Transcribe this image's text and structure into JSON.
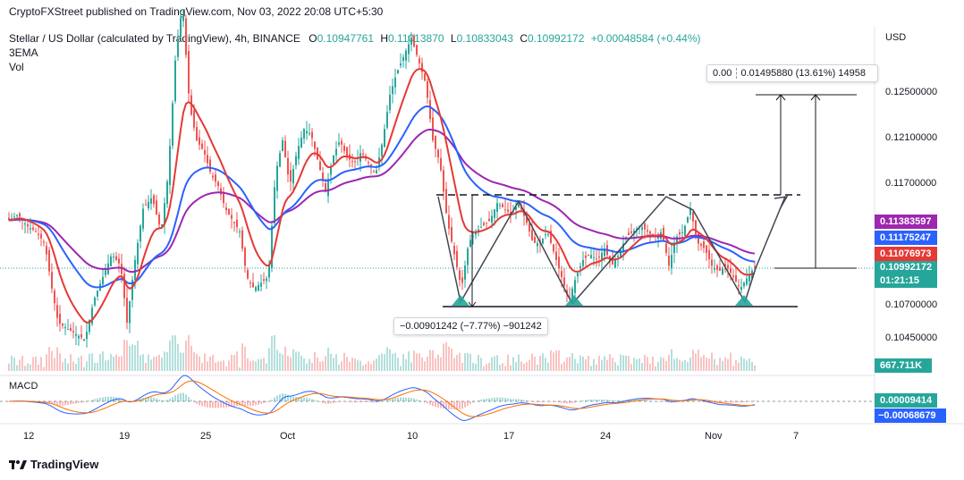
{
  "attribution": "CryptoFXStreet published on TradingView.com, Nov 03, 2022 20:08 UTC+5:30",
  "symbol": {
    "name": "Stellar / US Dollar (calculated by TradingView), 4h, BINANCE",
    "o_label": "O",
    "o": "0.10947761",
    "h_label": "H",
    "h": "0.11013870",
    "l_label": "L",
    "l": "0.10833043",
    "c_label": "C",
    "c": "0.10992172",
    "change": "+0.00048584 (+0.44%)"
  },
  "indicators": {
    "ema": "3EMA",
    "vol": "Vol",
    "macd": "MACD"
  },
  "currency": "USD",
  "colors": {
    "up": "#26a69a",
    "down": "#ef5350",
    "ema_red": "#e53935",
    "ema_blue": "#2962ff",
    "ema_purple": "#9c27b0"
  },
  "price_tags": {
    "purple": "0.11383597",
    "blue": "0.11175247",
    "red": "0.11076973",
    "last": "0.10992172",
    "countdown": "01:21:15",
    "volume": "667.711K",
    "macd_up": "0.00009414",
    "macd_down": "−0.00068679"
  },
  "measure_top": {
    "clip": "0.00",
    "text": "0.01495880 (13.61%) 14958"
  },
  "measure_bottom": "−0.00901242 (−7.77%) −901242",
  "footer": "TradingView",
  "chart_data": {
    "type": "candlestick",
    "y_ticks": [
      "0.12500000",
      "0.12100000",
      "0.11700000",
      "0.10700000",
      "0.10450000"
    ],
    "x_ticks": [
      "12",
      "19",
      "25",
      "Oct",
      "10",
      "17",
      "24",
      "Nov",
      "7"
    ],
    "emas": [
      {
        "name": "3EMA red",
        "last": 0.11076973
      },
      {
        "name": "3EMA blue",
        "last": 0.11175247
      },
      {
        "name": "3EMA purple",
        "last": 0.11383597
      }
    ],
    "pattern": {
      "neckline": 0.1163,
      "support": 0.1069,
      "target": 0.1251
    },
    "path": [
      [
        0,
        0.1147
      ],
      [
        10,
        0.114
      ],
      [
        20,
        0.1145
      ],
      [
        30,
        0.1135
      ],
      [
        40,
        0.113
      ],
      [
        50,
        0.112
      ],
      [
        58,
        0.108
      ],
      [
        65,
        0.105
      ],
      [
        75,
        0.1045
      ],
      [
        85,
        0.104
      ],
      [
        95,
        0.1035
      ],
      [
        105,
        0.107
      ],
      [
        115,
        0.109
      ],
      [
        125,
        0.111
      ],
      [
        135,
        0.11
      ],
      [
        142,
        0.105
      ],
      [
        150,
        0.11
      ],
      [
        160,
        0.115
      ],
      [
        170,
        0.116
      ],
      [
        180,
        0.113
      ],
      [
        188,
        0.118
      ],
      [
        196,
        0.128
      ],
      [
        204,
        0.133
      ],
      [
        212,
        0.124
      ],
      [
        220,
        0.121
      ],
      [
        228,
        0.12
      ],
      [
        236,
        0.118
      ],
      [
        244,
        0.117
      ],
      [
        252,
        0.115
      ],
      [
        260,
        0.114
      ],
      [
        268,
        0.113
      ],
      [
        276,
        0.109
      ],
      [
        284,
        0.108
      ],
      [
        292,
        0.1085
      ],
      [
        300,
        0.109
      ],
      [
        308,
        0.118
      ],
      [
        316,
        0.121
      ],
      [
        324,
        0.117
      ],
      [
        332,
        0.12
      ],
      [
        340,
        0.122
      ],
      [
        348,
        0.1215
      ],
      [
        356,
        0.119
      ],
      [
        364,
        0.1165
      ],
      [
        372,
        0.1195
      ],
      [
        380,
        0.121
      ],
      [
        388,
        0.1195
      ],
      [
        396,
        0.119
      ],
      [
        404,
        0.12
      ],
      [
        412,
        0.119
      ],
      [
        420,
        0.118
      ],
      [
        428,
        0.121
      ],
      [
        436,
        0.125
      ],
      [
        444,
        0.127
      ],
      [
        452,
        0.1285
      ],
      [
        460,
        0.13
      ],
      [
        468,
        0.128
      ],
      [
        476,
        0.126
      ],
      [
        484,
        0.121
      ],
      [
        492,
        0.119
      ],
      [
        500,
        0.114
      ],
      [
        508,
        0.111
      ],
      [
        516,
        0.108
      ],
      [
        524,
        0.112
      ],
      [
        532,
        0.113
      ],
      [
        540,
        0.1135
      ],
      [
        548,
        0.114
      ],
      [
        556,
        0.1155
      ],
      [
        564,
        0.115
      ],
      [
        572,
        0.1145
      ],
      [
        580,
        0.1155
      ],
      [
        588,
        0.114
      ],
      [
        596,
        0.112
      ],
      [
        604,
        0.112
      ],
      [
        612,
        0.113
      ],
      [
        620,
        0.111
      ],
      [
        628,
        0.109
      ],
      [
        636,
        0.107
      ],
      [
        644,
        0.109
      ],
      [
        652,
        0.1105
      ],
      [
        660,
        0.111
      ],
      [
        668,
        0.1105
      ],
      [
        676,
        0.1115
      ],
      [
        684,
        0.11
      ],
      [
        692,
        0.111
      ],
      [
        700,
        0.1125
      ],
      [
        708,
        0.113
      ],
      [
        716,
        0.1135
      ],
      [
        724,
        0.113
      ],
      [
        732,
        0.1125
      ],
      [
        740,
        0.113
      ],
      [
        748,
        0.11
      ],
      [
        756,
        0.1125
      ],
      [
        764,
        0.113
      ],
      [
        772,
        0.115
      ],
      [
        780,
        0.112
      ],
      [
        788,
        0.1115
      ],
      [
        796,
        0.11
      ],
      [
        804,
        0.1095
      ],
      [
        812,
        0.11
      ],
      [
        820,
        0.109
      ],
      [
        828,
        0.108
      ],
      [
        836,
        0.109
      ],
      [
        844,
        0.1099
      ]
    ]
  }
}
